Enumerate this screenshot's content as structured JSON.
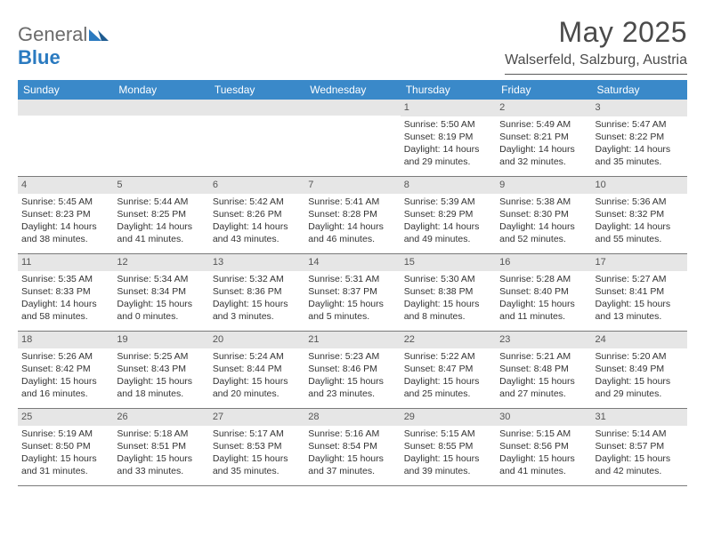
{
  "logo": {
    "general": "General",
    "blue": "Blue"
  },
  "title": "May 2025",
  "location": "Walserfeld, Salzburg, Austria",
  "colors": {
    "header_bg": "#3a89c9",
    "header_text": "#ffffff",
    "daynum_bg": "#e6e6e6",
    "daynum_text": "#555555",
    "body_text": "#333333",
    "title_text": "#4a4a4a",
    "logo_gray": "#6b6b6b",
    "logo_blue": "#2a7ac0",
    "row_border": "#7a7a7a"
  },
  "weekdays": [
    "Sunday",
    "Monday",
    "Tuesday",
    "Wednesday",
    "Thursday",
    "Friday",
    "Saturday"
  ],
  "weeks": [
    [
      null,
      null,
      null,
      null,
      {
        "n": "1",
        "sr": "5:50 AM",
        "ss": "8:19 PM",
        "dl": "14 hours and 29 minutes."
      },
      {
        "n": "2",
        "sr": "5:49 AM",
        "ss": "8:21 PM",
        "dl": "14 hours and 32 minutes."
      },
      {
        "n": "3",
        "sr": "5:47 AM",
        "ss": "8:22 PM",
        "dl": "14 hours and 35 minutes."
      }
    ],
    [
      {
        "n": "4",
        "sr": "5:45 AM",
        "ss": "8:23 PM",
        "dl": "14 hours and 38 minutes."
      },
      {
        "n": "5",
        "sr": "5:44 AM",
        "ss": "8:25 PM",
        "dl": "14 hours and 41 minutes."
      },
      {
        "n": "6",
        "sr": "5:42 AM",
        "ss": "8:26 PM",
        "dl": "14 hours and 43 minutes."
      },
      {
        "n": "7",
        "sr": "5:41 AM",
        "ss": "8:28 PM",
        "dl": "14 hours and 46 minutes."
      },
      {
        "n": "8",
        "sr": "5:39 AM",
        "ss": "8:29 PM",
        "dl": "14 hours and 49 minutes."
      },
      {
        "n": "9",
        "sr": "5:38 AM",
        "ss": "8:30 PM",
        "dl": "14 hours and 52 minutes."
      },
      {
        "n": "10",
        "sr": "5:36 AM",
        "ss": "8:32 PM",
        "dl": "14 hours and 55 minutes."
      }
    ],
    [
      {
        "n": "11",
        "sr": "5:35 AM",
        "ss": "8:33 PM",
        "dl": "14 hours and 58 minutes."
      },
      {
        "n": "12",
        "sr": "5:34 AM",
        "ss": "8:34 PM",
        "dl": "15 hours and 0 minutes."
      },
      {
        "n": "13",
        "sr": "5:32 AM",
        "ss": "8:36 PM",
        "dl": "15 hours and 3 minutes."
      },
      {
        "n": "14",
        "sr": "5:31 AM",
        "ss": "8:37 PM",
        "dl": "15 hours and 5 minutes."
      },
      {
        "n": "15",
        "sr": "5:30 AM",
        "ss": "8:38 PM",
        "dl": "15 hours and 8 minutes."
      },
      {
        "n": "16",
        "sr": "5:28 AM",
        "ss": "8:40 PM",
        "dl": "15 hours and 11 minutes."
      },
      {
        "n": "17",
        "sr": "5:27 AM",
        "ss": "8:41 PM",
        "dl": "15 hours and 13 minutes."
      }
    ],
    [
      {
        "n": "18",
        "sr": "5:26 AM",
        "ss": "8:42 PM",
        "dl": "15 hours and 16 minutes."
      },
      {
        "n": "19",
        "sr": "5:25 AM",
        "ss": "8:43 PM",
        "dl": "15 hours and 18 minutes."
      },
      {
        "n": "20",
        "sr": "5:24 AM",
        "ss": "8:44 PM",
        "dl": "15 hours and 20 minutes."
      },
      {
        "n": "21",
        "sr": "5:23 AM",
        "ss": "8:46 PM",
        "dl": "15 hours and 23 minutes."
      },
      {
        "n": "22",
        "sr": "5:22 AM",
        "ss": "8:47 PM",
        "dl": "15 hours and 25 minutes."
      },
      {
        "n": "23",
        "sr": "5:21 AM",
        "ss": "8:48 PM",
        "dl": "15 hours and 27 minutes."
      },
      {
        "n": "24",
        "sr": "5:20 AM",
        "ss": "8:49 PM",
        "dl": "15 hours and 29 minutes."
      }
    ],
    [
      {
        "n": "25",
        "sr": "5:19 AM",
        "ss": "8:50 PM",
        "dl": "15 hours and 31 minutes."
      },
      {
        "n": "26",
        "sr": "5:18 AM",
        "ss": "8:51 PM",
        "dl": "15 hours and 33 minutes."
      },
      {
        "n": "27",
        "sr": "5:17 AM",
        "ss": "8:53 PM",
        "dl": "15 hours and 35 minutes."
      },
      {
        "n": "28",
        "sr": "5:16 AM",
        "ss": "8:54 PM",
        "dl": "15 hours and 37 minutes."
      },
      {
        "n": "29",
        "sr": "5:15 AM",
        "ss": "8:55 PM",
        "dl": "15 hours and 39 minutes."
      },
      {
        "n": "30",
        "sr": "5:15 AM",
        "ss": "8:56 PM",
        "dl": "15 hours and 41 minutes."
      },
      {
        "n": "31",
        "sr": "5:14 AM",
        "ss": "8:57 PM",
        "dl": "15 hours and 42 minutes."
      }
    ]
  ],
  "labels": {
    "sunrise": "Sunrise:",
    "sunset": "Sunset:",
    "daylight": "Daylight:"
  }
}
